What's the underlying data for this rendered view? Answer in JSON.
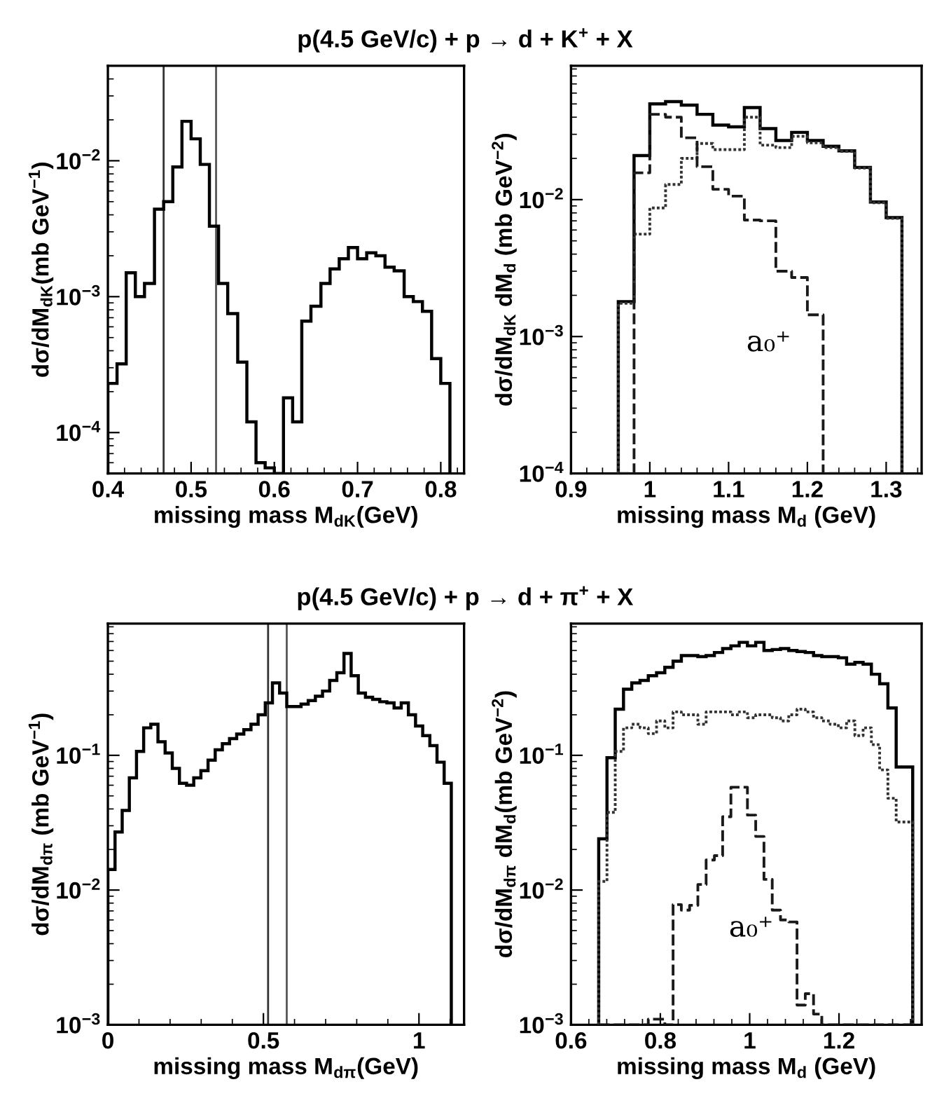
{
  "chart_data": [
    {
      "type": "histogram",
      "title": "p(4.5 GeV/c) + p → d + K$^{+}$ + X",
      "xlabel": "missing mass M$_{dK}$(GeV)",
      "ylabel": "dσ/dM$_{dK}$(mb GeV$^{−1}$)",
      "log": true,
      "color": "#000000",
      "line_style": "solid",
      "bins": [
        0.4,
        0.411,
        0.422,
        0.433,
        0.444,
        0.456,
        0.467,
        0.478,
        0.489,
        0.5,
        0.511,
        0.522,
        0.533,
        0.544,
        0.556,
        0.567,
        0.578,
        0.589,
        0.6,
        0.611,
        0.622,
        0.633,
        0.644,
        0.656,
        0.667,
        0.678,
        0.689,
        0.7,
        0.711,
        0.722,
        0.733,
        0.744,
        0.756,
        0.767,
        0.778,
        0.789,
        0.8,
        0.811
      ],
      "values": [
        0.00023,
        0.00032,
        0.0015,
        0.001,
        0.00125,
        0.0044,
        0.005,
        0.009,
        0.0195,
        0.0145,
        0.0094,
        0.0033,
        0.00125,
        0.00075,
        0.00033,
        0.00012,
        6e-05,
        5.5e-05,
        5e-05,
        0.00018,
        0.00012,
        0.00066,
        0.00085,
        0.00125,
        0.0016,
        0.0019,
        0.0023,
        0.0019,
        0.0021,
        0.002,
        0.00165,
        0.00155,
        0.001,
        0.00092,
        0.00078,
        0.00035,
        0.00023
      ],
      "xlim": [
        0.4,
        0.828
      ],
      "xticks": [
        0.4,
        0.5,
        0.6,
        0.7,
        0.8
      ],
      "ylim": [
        5e-05,
        0.05
      ],
      "yticks": [
        {
          "value": 0.0001,
          "label": "10$^{−4}$"
        },
        {
          "value": 0.001,
          "label": "10$^{−3}$"
        },
        {
          "value": 0.01,
          "label": "10$^{−2}$"
        }
      ],
      "ref_lines": [
        {
          "axis": "x",
          "value": 0.467,
          "color": "#333333"
        },
        {
          "axis": "x",
          "value": 0.53,
          "color": "#555555"
        }
      ]
    },
    {
      "type": "histogram",
      "xlabel": "missing mass M$_{d}$ (GeV)",
      "ylabel": "dσ/dM$_{dK}$ dM$_{d}$ (mb GeV$^{−2}$)",
      "log": true,
      "bins": [
        0.96,
        0.98,
        1.0,
        1.02,
        1.04,
        1.06,
        1.08,
        1.1,
        1.12,
        1.14,
        1.16,
        1.18,
        1.2,
        1.22,
        1.24,
        1.26,
        1.28,
        1.3,
        1.32
      ],
      "series": [
        {
          "color": "#000000",
          "line_style": "solid",
          "values": [
            0.0018,
            0.021,
            0.05,
            0.052,
            0.049,
            0.042,
            0.035,
            0.034,
            0.047,
            0.033,
            0.027,
            0.031,
            0.027,
            0.0245,
            0.0227,
            0.0172,
            0.0096,
            0.0074
          ]
        },
        {
          "color": "#333333",
          "line_style": "dotted",
          "values": [
            0.00175,
            0.0056,
            0.0087,
            0.0129,
            0.02,
            0.0257,
            0.0232,
            0.0232,
            0.04,
            0.025,
            0.024,
            0.029,
            0.026,
            0.024,
            0.0225,
            0.017,
            0.0095,
            0.0073
          ]
        },
        {
          "color": "#1a1a1a",
          "line_style": "dashed",
          "values": [
            0.0001,
            0.0157,
            0.042,
            0.04,
            0.0283,
            0.0174,
            0.0119,
            0.0106,
            0.0071,
            0.007,
            0.003,
            0.0027,
            0.00144,
            0.0001,
            0.0001,
            0.0001,
            0.0001,
            0.0001
          ]
        }
      ],
      "annotations": [
        "a₀⁺"
      ],
      "xlim": [
        0.9,
        1.345
      ],
      "xticks": [
        0.9,
        1,
        1.1,
        1.2,
        1.3
      ],
      "ylim": [
        0.0001,
        0.095
      ],
      "yticks": [
        {
          "value": 0.0001,
          "label": "10$^{−4}$"
        },
        {
          "value": 0.001,
          "label": "10$^{−3}$"
        },
        {
          "value": 0.01,
          "label": "10$^{−2}$"
        }
      ]
    },
    {
      "type": "histogram",
      "title": "p(4.5 GeV/c) + p → d + π$^{+}$ + X",
      "xlabel": "missing mass M$_{dπ}$(GeV)",
      "ylabel": "dσ/dM$_{dπ}$ (mb GeV$^{−1}$)",
      "log": true,
      "color": "#000000",
      "line_style": "solid",
      "bins": [
        0,
        0.023,
        0.046,
        0.069,
        0.092,
        0.115,
        0.138,
        0.161,
        0.184,
        0.207,
        0.23,
        0.253,
        0.276,
        0.299,
        0.322,
        0.345,
        0.368,
        0.391,
        0.414,
        0.437,
        0.46,
        0.483,
        0.506,
        0.529,
        0.552,
        0.575,
        0.598,
        0.621,
        0.644,
        0.667,
        0.69,
        0.713,
        0.736,
        0.759,
        0.782,
        0.805,
        0.828,
        0.851,
        0.874,
        0.897,
        0.92,
        0.943,
        0.966,
        0.989,
        1.012,
        1.035,
        1.058,
        1.081,
        1.104
      ],
      "values": [
        0.0142,
        0.027,
        0.039,
        0.068,
        0.107,
        0.16,
        0.17,
        0.126,
        0.104,
        0.08,
        0.062,
        0.06,
        0.068,
        0.077,
        0.092,
        0.11,
        0.122,
        0.133,
        0.144,
        0.155,
        0.17,
        0.2,
        0.245,
        0.345,
        0.29,
        0.23,
        0.23,
        0.24,
        0.255,
        0.275,
        0.3,
        0.36,
        0.41,
        0.57,
        0.39,
        0.29,
        0.27,
        0.26,
        0.25,
        0.245,
        0.225,
        0.245,
        0.2,
        0.165,
        0.14,
        0.118,
        0.089,
        0.062
      ],
      "xlim": [
        0,
        1.145
      ],
      "xticks": [
        0,
        0.5,
        1
      ],
      "ylim": [
        0.001,
        0.95
      ],
      "yticks": [
        {
          "value": 0.001,
          "label": "10$^{−3}$"
        },
        {
          "value": 0.01,
          "label": "10$^{−2}$"
        },
        {
          "value": 0.1,
          "label": "10$^{−1}$"
        }
      ],
      "ref_lines": [
        {
          "axis": "x",
          "value": 0.515,
          "color": "#333333"
        },
        {
          "axis": "x",
          "value": 0.575,
          "color": "#555555"
        }
      ]
    },
    {
      "type": "histogram",
      "xlabel": "missing mass M$_{d}$ (GeV)",
      "ylabel": "dσ/dM$_{dπ}$ dM$_{d}$(mb GeV$^{−2}$)",
      "log": true,
      "bins": [
        0.662,
        0.6805,
        0.699,
        0.7175,
        0.736,
        0.7545,
        0.773,
        0.7915,
        0.81,
        0.8285,
        0.847,
        0.8655,
        0.884,
        0.9025,
        0.921,
        0.9395,
        0.958,
        0.9765,
        0.995,
        1.0135,
        1.032,
        1.0505,
        1.069,
        1.0875,
        1.106,
        1.1245,
        1.143,
        1.1615,
        1.18,
        1.1985,
        1.217,
        1.2355,
        1.254,
        1.2725,
        1.291,
        1.3095,
        1.328,
        1.3465,
        1.365
      ],
      "series": [
        {
          "color": "#000000",
          "line_style": "solid",
          "values": [
            0.024,
            0.096,
            0.22,
            0.31,
            0.345,
            0.36,
            0.39,
            0.41,
            0.45,
            0.5,
            0.55,
            0.55,
            0.54,
            0.55,
            0.58,
            0.62,
            0.65,
            0.69,
            0.65,
            0.69,
            0.6,
            0.61,
            0.62,
            0.6,
            0.59,
            0.58,
            0.55,
            0.54,
            0.54,
            0.53,
            0.475,
            0.49,
            0.475,
            0.4,
            0.34,
            0.225,
            0.082,
            0.082
          ]
        },
        {
          "color": "#333333",
          "line_style": "dotted",
          "values": [
            0.0116,
            0.0377,
            0.107,
            0.16,
            0.17,
            0.16,
            0.145,
            0.18,
            0.16,
            0.21,
            0.2,
            0.2,
            0.17,
            0.21,
            0.21,
            0.21,
            0.2,
            0.21,
            0.19,
            0.2,
            0.2,
            0.19,
            0.18,
            0.2,
            0.22,
            0.21,
            0.19,
            0.18,
            0.17,
            0.16,
            0.18,
            0.14,
            0.16,
            0.12,
            0.078,
            0.048,
            0.032,
            0.032
          ]
        },
        {
          "color": "#1a1a1a",
          "line_style": "dashed",
          "values": [
            0.001,
            0.001,
            0.001,
            0.001,
            0.001,
            0.001,
            0.0011,
            0.0011,
            0.001,
            0.0078,
            0.0071,
            0.0077,
            0.011,
            0.0167,
            0.018,
            0.035,
            0.058,
            0.058,
            0.036,
            0.025,
            0.012,
            0.0071,
            0.006,
            0.0058,
            0.0014,
            0.0017,
            0.0012,
            0.001,
            0.001,
            0.001,
            0.001,
            0.001,
            0.001,
            0.001,
            0.001,
            0.001,
            0.001,
            0.001
          ]
        }
      ],
      "annotations": [
        "a₀⁺"
      ],
      "xlim": [
        0.6,
        1.385
      ],
      "xticks": [
        0.6,
        0.8,
        1,
        1.2
      ],
      "ylim": [
        0.001,
        0.95
      ],
      "yticks": [
        {
          "value": 0.001,
          "label": "10$^{−3}$"
        },
        {
          "value": 0.01,
          "label": "10$^{−2}$"
        },
        {
          "value": 0.1,
          "label": "10$^{−1}$"
        }
      ]
    }
  ]
}
